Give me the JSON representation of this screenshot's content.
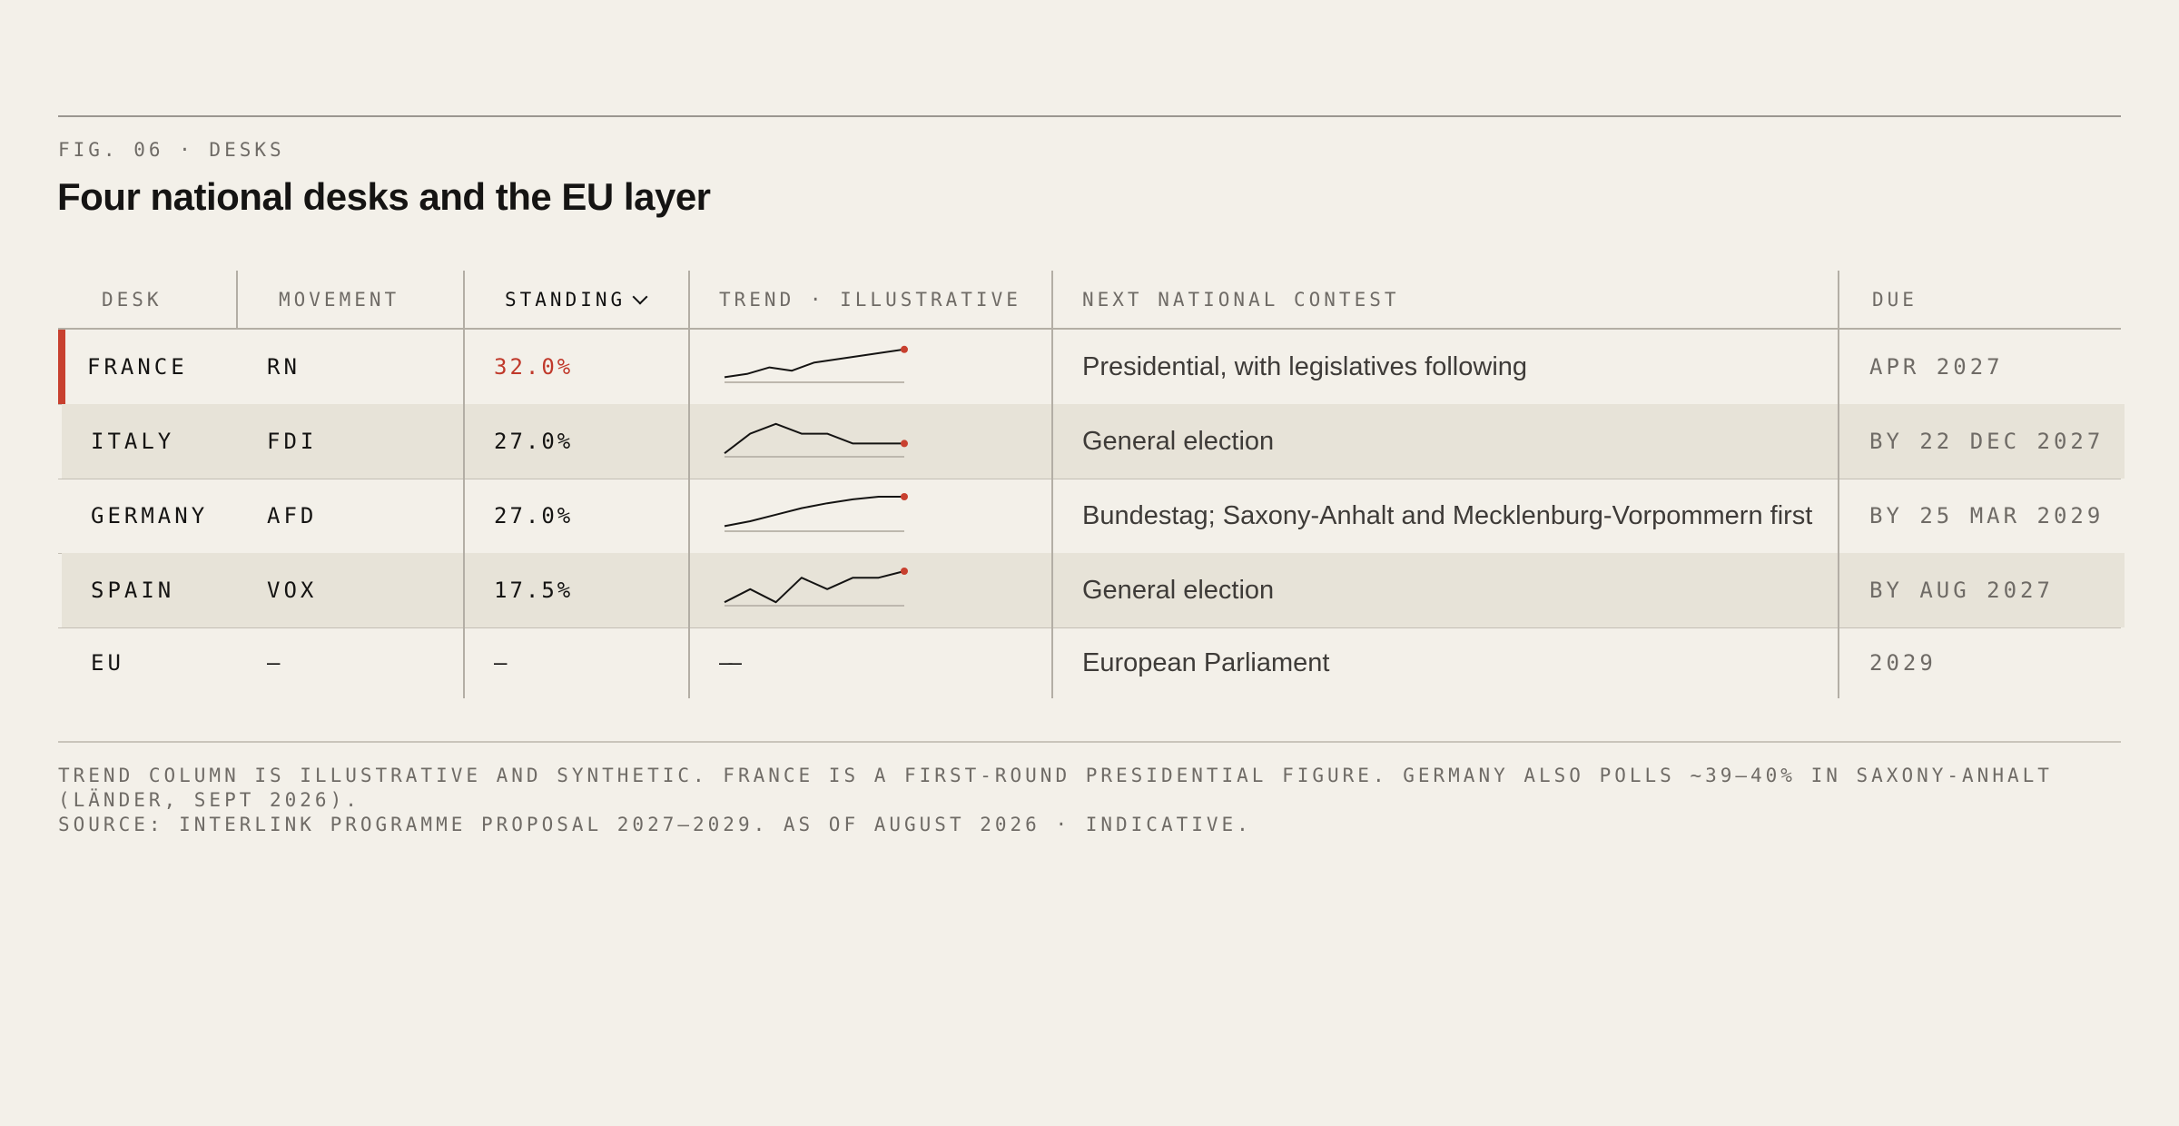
{
  "header": {
    "fig_label": "FIG. 06 · DESKS",
    "title": "Four national desks and the EU layer"
  },
  "table": {
    "columns": {
      "desk": "DESK",
      "movement": "MOVEMENT",
      "standing": "STANDING",
      "trend": "TREND · ILLUSTRATIVE",
      "contest": "NEXT NATIONAL CONTEST",
      "due": "DUE"
    },
    "sort_icon": "chevron-down-icon",
    "rows": [
      {
        "desk": "FRANCE",
        "movement": "RN",
        "standing": "32.0%",
        "trend": [
          0.1,
          0.2,
          0.4,
          0.3,
          0.55,
          0.65,
          0.75,
          0.85,
          0.95
        ],
        "contest": "Presidential, with legislatives following",
        "due": "APR 2027",
        "highlighted": true
      },
      {
        "desk": "ITALY",
        "movement": "FDI",
        "standing": "27.0%",
        "trend": [
          0.05,
          0.65,
          0.95,
          0.65,
          0.65,
          0.35,
          0.35,
          0.35
        ],
        "contest": "General election",
        "due": "BY 22 DEC 2027"
      },
      {
        "desk": "GERMANY",
        "movement": "AFD",
        "standing": "27.0%",
        "trend": [
          0.1,
          0.25,
          0.45,
          0.65,
          0.8,
          0.92,
          1.0,
          1.0
        ],
        "contest": "Bundestag; Saxony-Anhalt and Mecklenburg-Vorpommern first",
        "due": "BY 25 MAR 2029"
      },
      {
        "desk": "SPAIN",
        "movement": "VOX",
        "standing": "17.5%",
        "trend": [
          0.05,
          0.45,
          0.05,
          0.8,
          0.45,
          0.8,
          0.8,
          1.0
        ],
        "contest": "General election",
        "due": "BY AUG 2027"
      },
      {
        "desk": "EU",
        "movement": "—",
        "standing": "—",
        "trend": "——",
        "contest": "European Parliament",
        "due": "2029"
      }
    ],
    "colors": {
      "accent": "#c8402f",
      "highlight": "#c0392b",
      "band": "#e7e3d8",
      "background": "#f3f0e9"
    }
  },
  "footer": {
    "note_line1": "TREND COLUMN IS ILLUSTRATIVE AND SYNTHETIC. FRANCE IS A FIRST-ROUND PRESIDENTIAL FIGURE. GERMANY ALSO POLLS ~39–40% IN SAXONY-ANHALT",
    "note_line2": "(LÄNDER, SEPT 2026).",
    "source": "SOURCE: INTERLINK PROGRAMME PROPOSAL 2027–2029. AS OF AUGUST 2026 · INDICATIVE."
  }
}
